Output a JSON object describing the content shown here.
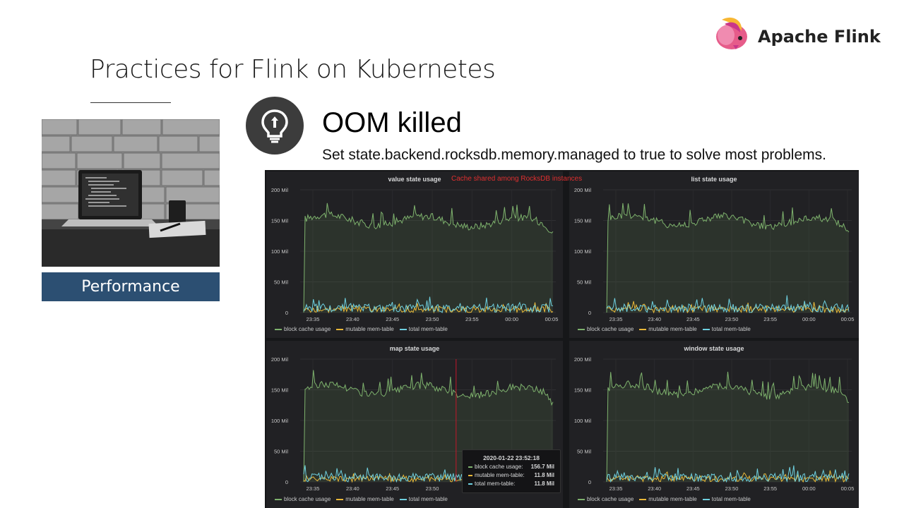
{
  "slide": {
    "title": "Practices for Flink on Kubernetes",
    "logo_text": "Apache Flink",
    "performance_label": "Performance",
    "heading": "OOM killed",
    "description": "Set state.backend.rocksdb.memory.managed to true to solve most problems."
  },
  "dashboard": {
    "note": "Cache shared among RocksDB instances",
    "y_ticks": [
      "200 Mil",
      "150 Mil",
      "100 Mil",
      "50 Mil",
      "0"
    ],
    "x_ticks": [
      "23:35",
      "23:40",
      "23:45",
      "23:50",
      "23:55",
      "00:00",
      "00:05"
    ],
    "legend": [
      {
        "label": "block cache usage",
        "color": "#7eb26d"
      },
      {
        "label": "mutable mem-table",
        "color": "#eab839"
      },
      {
        "label": "total mem-table",
        "color": "#6ed0e0"
      }
    ],
    "panels": [
      {
        "title": "value state usage"
      },
      {
        "title": "list state usage"
      },
      {
        "title": "map state usage"
      },
      {
        "title": "window state usage"
      }
    ],
    "tooltip": {
      "time": "2020-01-22 23:52:18",
      "rows": [
        {
          "label": "block cache usage:",
          "value": "156.7 Mil",
          "color": "#7eb26d"
        },
        {
          "label": "mutable mem-table:",
          "value": "11.8 Mil",
          "color": "#eab839"
        },
        {
          "label": "total mem-table:",
          "value": "11.8 Mil",
          "color": "#6ed0e0"
        }
      ]
    }
  },
  "colors": {
    "performance_box": "#2c4f72",
    "block_cache": "#7eb26d",
    "mutable": "#eab839",
    "total": "#6ed0e0",
    "note": "#e02f2f"
  }
}
